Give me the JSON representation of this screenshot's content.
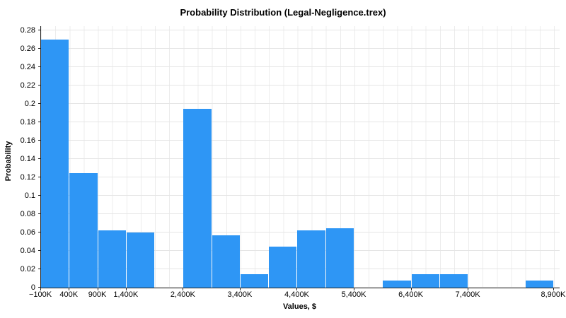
{
  "chart_data": {
    "type": "bar",
    "title": "Probability Distribution (Legal-Negligence.trex)",
    "xlabel": "Values, $",
    "ylabel": "Probability",
    "bar_color": "#2e96f5",
    "grid": true,
    "legend": "none",
    "x_unit": "thousands of dollars (K)",
    "xlim": [
      -100,
      9000
    ],
    "ylim": [
      0,
      0.28
    ],
    "bin_width": 500,
    "bins": [
      {
        "start": -100,
        "end": 400,
        "p": 0.27
      },
      {
        "start": 400,
        "end": 900,
        "p": 0.125
      },
      {
        "start": 900,
        "end": 1400,
        "p": 0.062
      },
      {
        "start": 1400,
        "end": 1900,
        "p": 0.06
      },
      {
        "start": 1900,
        "end": 2400,
        "p": 0
      },
      {
        "start": 2400,
        "end": 2900,
        "p": 0.195
      },
      {
        "start": 2900,
        "end": 3400,
        "p": 0.057
      },
      {
        "start": 3400,
        "end": 3900,
        "p": 0.015
      },
      {
        "start": 3900,
        "end": 4400,
        "p": 0.045
      },
      {
        "start": 4400,
        "end": 4900,
        "p": 0.062
      },
      {
        "start": 4900,
        "end": 5400,
        "p": 0.065
      },
      {
        "start": 5400,
        "end": 5900,
        "p": 0
      },
      {
        "start": 5900,
        "end": 6400,
        "p": 0.008
      },
      {
        "start": 6400,
        "end": 6900,
        "p": 0.015
      },
      {
        "start": 6900,
        "end": 7400,
        "p": 0.015
      },
      {
        "start": 7400,
        "end": 7900,
        "p": 0
      },
      {
        "start": 7900,
        "end": 8400,
        "p": 0
      },
      {
        "start": 8400,
        "end": 8900,
        "p": 0.008
      }
    ],
    "x_ticks": [
      {
        "value": -100,
        "label": "−100K"
      },
      {
        "value": 400,
        "label": "400K"
      },
      {
        "value": 900,
        "label": "900K"
      },
      {
        "value": 1400,
        "label": "1,400K"
      },
      {
        "value": 2400,
        "label": "2,400K"
      },
      {
        "value": 3400,
        "label": "3,400K"
      },
      {
        "value": 4400,
        "label": "4,400K"
      },
      {
        "value": 5400,
        "label": "5,400K"
      },
      {
        "value": 6400,
        "label": "6,400K"
      },
      {
        "value": 7400,
        "label": "7,400K"
      },
      {
        "value": 8900,
        "label": "8,900K"
      }
    ],
    "y_ticks": [
      {
        "value": 0,
        "label": "0"
      },
      {
        "value": 0.02,
        "label": "0.02"
      },
      {
        "value": 0.04,
        "label": "0.04"
      },
      {
        "value": 0.06,
        "label": "0.06"
      },
      {
        "value": 0.08,
        "label": "0.08"
      },
      {
        "value": 0.1,
        "label": "0.1"
      },
      {
        "value": 0.12,
        "label": "0.12"
      },
      {
        "value": 0.14,
        "label": "0.14"
      },
      {
        "value": 0.16,
        "label": "0.16"
      },
      {
        "value": 0.18,
        "label": "0.18"
      },
      {
        "value": 0.2,
        "label": "0.2"
      },
      {
        "value": 0.22,
        "label": "0.22"
      },
      {
        "value": 0.24,
        "label": "0.24"
      },
      {
        "value": 0.26,
        "label": "0.26"
      },
      {
        "value": 0.28,
        "label": "0.28"
      }
    ]
  }
}
